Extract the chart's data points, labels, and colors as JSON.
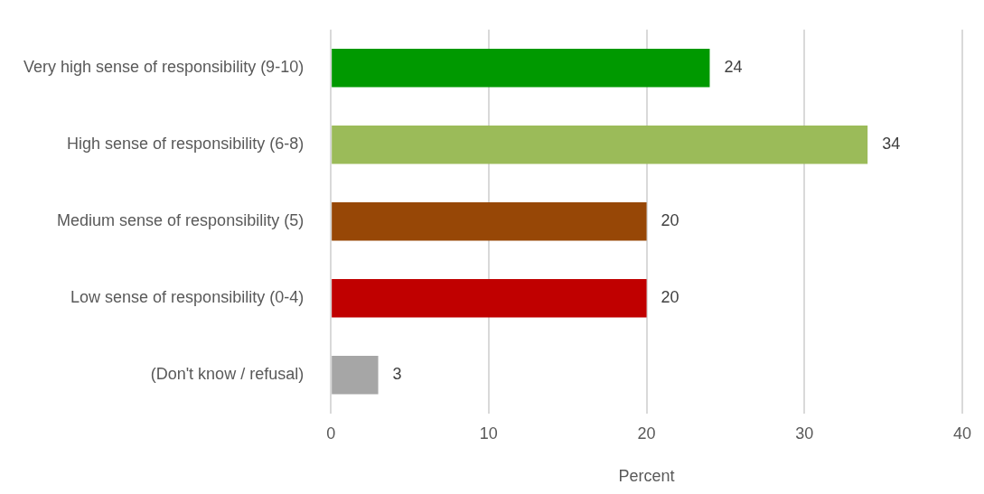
{
  "chart_data": {
    "type": "bar",
    "orientation": "horizontal",
    "categories": [
      "Very high sense of responsibility (9-10)",
      "High sense of responsibility (6-8)",
      "Medium sense of responsibility (5)",
      "Low sense of responsibility (0-4)",
      "(Don't know / refusal)"
    ],
    "values": [
      24,
      34,
      20,
      20,
      3
    ],
    "colors": [
      "#009900",
      "#9bbb59",
      "#974706",
      "#c00000",
      "#a6a6a6"
    ],
    "xlim": [
      0,
      40
    ],
    "xticks": [
      0,
      10,
      20,
      30,
      40
    ],
    "xlabel": "Percent",
    "grid": "x",
    "data_labels": true
  }
}
